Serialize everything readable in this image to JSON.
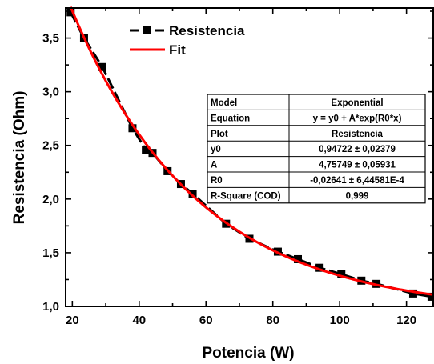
{
  "chart_data": {
    "type": "scatter",
    "xlabel": "Potencia (W)",
    "ylabel": "Resistencia (Ohm)",
    "xlim": [
      18,
      128
    ],
    "ylim": [
      1.0,
      3.78
    ],
    "xticks": [
      "20",
      "40",
      "60",
      "80",
      "100",
      "120"
    ],
    "yticks": [
      "1,0",
      "1,5",
      "2,0",
      "2,5",
      "3,0",
      "3,5"
    ],
    "xtick_values": [
      20,
      40,
      60,
      80,
      100,
      120
    ],
    "ytick_values": [
      1.0,
      1.5,
      2.0,
      2.5,
      3.0,
      3.5
    ],
    "legend_position": "top-left",
    "series": [
      {
        "name": "Resistencia",
        "style": "line-with-square-markers",
        "color": "#000000",
        "x": [
          19.5,
          23.5,
          29,
          38,
          42,
          44,
          48.5,
          52.5,
          56,
          66,
          73,
          81.5,
          87.5,
          94,
          100.5,
          106.5,
          111,
          122,
          127.5
        ],
        "y": [
          3.74,
          3.5,
          3.23,
          2.66,
          2.46,
          2.43,
          2.26,
          2.14,
          2.05,
          1.77,
          1.63,
          1.51,
          1.44,
          1.36,
          1.3,
          1.24,
          1.21,
          1.12,
          1.09
        ]
      },
      {
        "name": "Fit",
        "style": "line",
        "color": "#ff0000",
        "model": {
          "y0": 0.94722,
          "A": 4.75749,
          "R0": -0.02641
        }
      }
    ],
    "fit_table": {
      "rows": [
        [
          "Model",
          "Exponential"
        ],
        [
          "Equation",
          "y = y0 + A*exp(R0*x)"
        ],
        [
          "Plot",
          "Resistencia"
        ],
        [
          "y0",
          "0,94722 ± 0,02379"
        ],
        [
          "A",
          "4,75749 ± 0,05931"
        ],
        [
          "R0",
          "-0,02641 ± 6,44581E-4"
        ],
        [
          "R-Square (COD)",
          "0,999"
        ]
      ]
    }
  }
}
